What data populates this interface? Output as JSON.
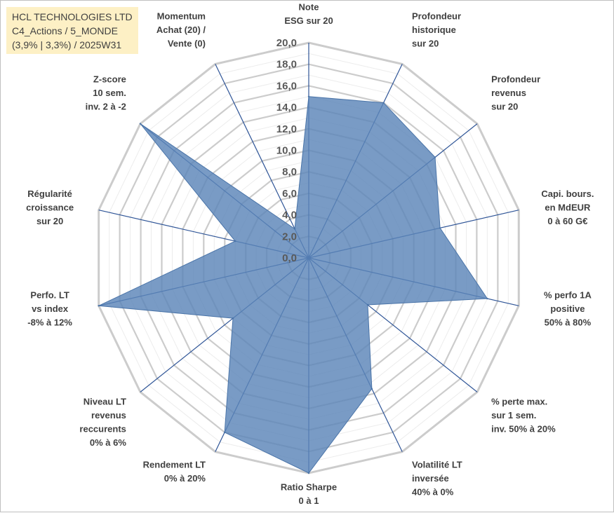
{
  "title_lines": [
    "HCL TECHNOLOGIES LTD",
    "C4_Actions / 5_MONDE",
    "(3,9% | 3,3%) / 2025W31"
  ],
  "chart_data": {
    "type": "radar",
    "rmin": 0,
    "rmax": 20,
    "tick_step": 2,
    "tick_labels": [
      "0,0",
      "2,0",
      "4,0",
      "6,0",
      "8,0",
      "10,0",
      "12,0",
      "14,0",
      "16,0",
      "18,0",
      "20,0"
    ],
    "gridlines": true,
    "legend": "none",
    "colors": {
      "fill": "#5b85b8",
      "grid": "#d0d0d0",
      "spoke": "#2f5597"
    },
    "axes": [
      {
        "label": [
          "Note",
          "ESG sur 20"
        ],
        "value": 15.0
      },
      {
        "label": [
          "Profondeur",
          "historique",
          "sur 20"
        ],
        "value": 16.0
      },
      {
        "label": [
          "Profondeur",
          "revenus",
          "sur 20"
        ],
        "value": 15.0
      },
      {
        "label": [
          "Capi. bours.",
          "en MdEUR",
          "0 à 60 G€"
        ],
        "value": 12.5
      },
      {
        "label": [
          "% perfo 1A",
          "positive",
          "50% à 80%"
        ],
        "value": 17.0
      },
      {
        "label": [
          "% perte max.",
          "sur 1 sem.",
          "inv. 50% à 20%"
        ],
        "value": 7.0
      },
      {
        "label": [
          "Volatilité LT",
          "inversée",
          "40% à 0%"
        ],
        "value": 13.5
      },
      {
        "label": [
          "Ratio Sharpe",
          "0 à 1"
        ],
        "value": 20.0
      },
      {
        "label": [
          "Rendement LT",
          "0% à 20%"
        ],
        "value": 18.0
      },
      {
        "label": [
          "Niveau LT",
          "revenus",
          "reccurents",
          "0% à 6%"
        ],
        "value": 9.0
      },
      {
        "label": [
          "Perfo. LT",
          "vs index",
          "-8% à 12%"
        ],
        "value": 20.0
      },
      {
        "label": [
          "Régularité",
          "croissance",
          "sur 20"
        ],
        "value": 7.0
      },
      {
        "label": [
          "Z-score",
          "10 sem.",
          "inv. 2 à -2"
        ],
        "value": 20.0
      },
      {
        "label": [
          "Momentum",
          "Achat (20) /",
          "Vente (0)"
        ],
        "value": 3.0
      }
    ]
  }
}
